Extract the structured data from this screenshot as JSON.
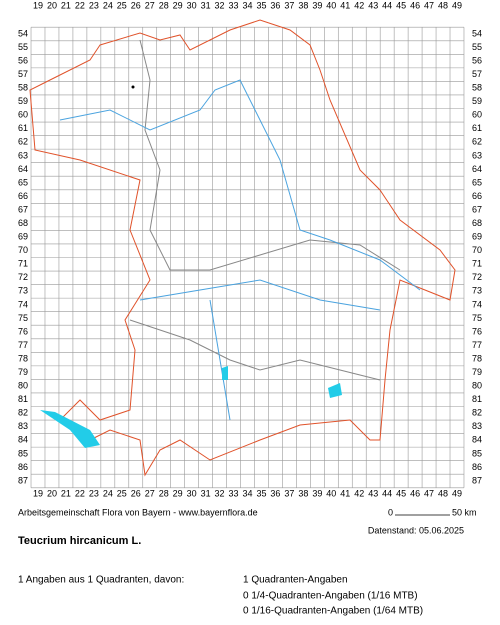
{
  "map": {
    "columns": [
      19,
      20,
      21,
      22,
      23,
      24,
      25,
      26,
      27,
      28,
      29,
      30,
      31,
      32,
      33,
      34,
      35,
      36,
      37,
      38,
      39,
      40,
      41,
      42,
      43,
      44,
      45,
      46,
      47,
      48,
      49
    ],
    "rows": [
      54,
      55,
      56,
      57,
      58,
      59,
      60,
      61,
      62,
      63,
      64,
      65,
      66,
      67,
      68,
      69,
      70,
      71,
      72,
      73,
      74,
      75,
      76,
      77,
      78,
      79,
      80,
      81,
      82,
      83,
      84,
      85,
      86,
      87
    ],
    "scale_start": "0",
    "scale_end": "50 km"
  },
  "footer": {
    "credit": "Arbeitsgemeinschaft Flora von Bayern - www.bayernflora.de",
    "date": "Datenstand: 05.06.2025",
    "title": "Teucrium hircanicum L.",
    "summary": "1 Angaben aus 1 Quadranten, davon:",
    "details": [
      "1 Quadranten-Angaben",
      "0 1/4-Quadranten-Angaben (1/16 MTB)",
      "0 1/16-Quadranten-Angaben (1/64 MTB)"
    ]
  }
}
